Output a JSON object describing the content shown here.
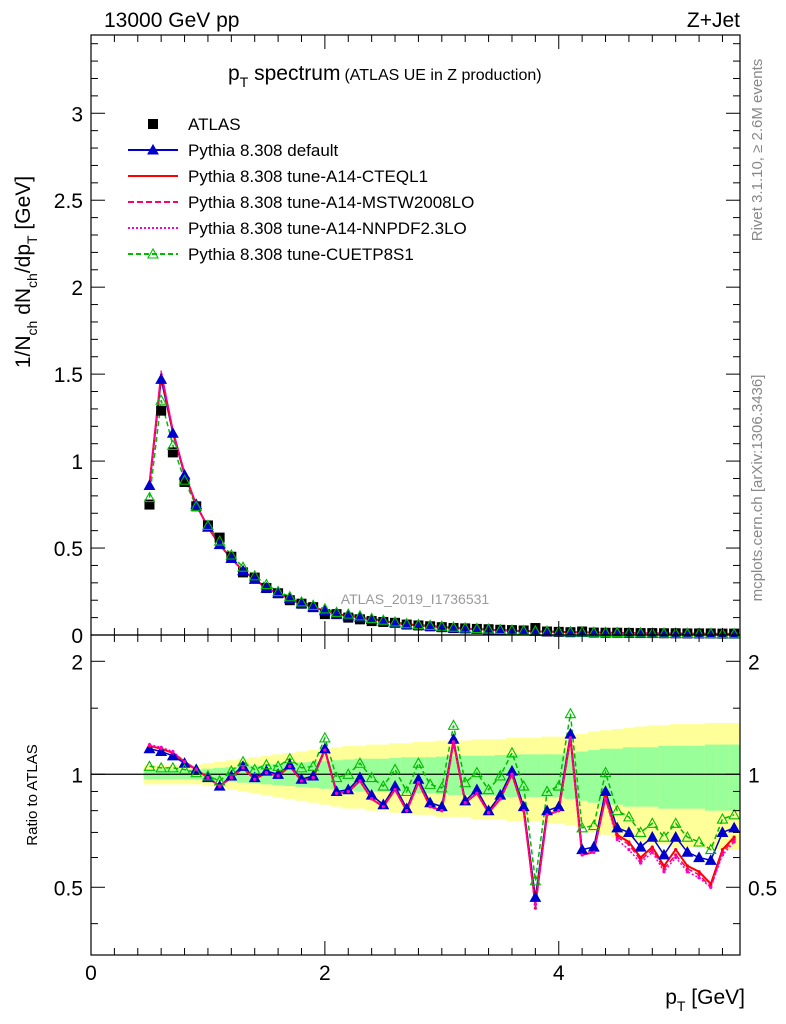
{
  "header": {
    "energy": "13000 GeV pp",
    "process": "Z+Jet",
    "title_main": "p",
    "title_sub": "T",
    "title_rest": " spectrum",
    "title_paren": "(ATLAS UE in Z production)",
    "watermark": "ATLAS_2019_I1736531",
    "side_rivet": "Rivet 3.1.10, ≥ 2.6M events",
    "side_mcplots": "mcplots.cern.ch [arXiv:1306.3436]"
  },
  "chart_data": [
    {
      "type": "scatter",
      "panel": "main",
      "ylabel": "1/N_ch dN_ch/dp_T [GeV]",
      "ylabel_parts": {
        "a": "1/N",
        "a_sub": "ch",
        "b": " dN",
        "b_sub": "ch",
        "c": "/dp",
        "c_sub": "T",
        "d": " [GeV]"
      },
      "xlim": [
        0,
        5.55
      ],
      "ylim": [
        0,
        3.45
      ],
      "y_ticks": [
        0,
        0.5,
        1,
        1.5,
        2,
        2.5,
        3
      ],
      "y_tick_labels": [
        "0",
        "0.5",
        "1",
        "1.5",
        "2",
        "2.5",
        "3"
      ],
      "legend_placement": "top-left",
      "x": [
        0.5,
        0.6,
        0.7,
        0.8,
        0.9,
        1.0,
        1.1,
        1.2,
        1.3,
        1.4,
        1.5,
        1.6,
        1.7,
        1.8,
        1.9,
        2.0,
        2.1,
        2.2,
        2.3,
        2.4,
        2.5,
        2.6,
        2.7,
        2.8,
        2.9,
        3.0,
        3.1,
        3.2,
        3.3,
        3.4,
        3.5,
        3.6,
        3.7,
        3.8,
        3.9,
        4.0,
        4.1,
        4.2,
        4.3,
        4.4,
        4.5,
        4.6,
        4.7,
        4.8,
        4.9,
        5.0,
        5.1,
        5.2,
        5.3,
        5.4,
        5.5
      ],
      "series": [
        {
          "name": "ATLAS",
          "color": "#000000",
          "marker": "square",
          "values": [
            0.75,
            1.29,
            1.05,
            0.88,
            0.74,
            0.63,
            0.56,
            0.45,
            0.36,
            0.33,
            0.27,
            0.24,
            0.2,
            0.18,
            0.16,
            0.12,
            0.12,
            0.1,
            0.09,
            0.08,
            0.075,
            0.07,
            0.06,
            0.055,
            0.05,
            0.045,
            0.04,
            0.038,
            0.035,
            0.033,
            0.03,
            0.028,
            0.026,
            0.04,
            0.02,
            0.018,
            0.016,
            0.02,
            0.014,
            0.013,
            0.013,
            0.012,
            0.011,
            0.011,
            0.01,
            0.01,
            0.009,
            0.009,
            0.009,
            0.008,
            0.008
          ]
        },
        {
          "name": "Pythia 8.308 default",
          "color": "#0000cc",
          "marker": "triangle",
          "dash": "",
          "values": [
            0.86,
            1.47,
            1.16,
            0.92,
            0.75,
            0.62,
            0.52,
            0.44,
            0.37,
            0.32,
            0.27,
            0.24,
            0.21,
            0.18,
            0.16,
            0.14,
            0.12,
            0.11,
            0.1,
            0.09,
            0.08,
            0.07,
            0.06,
            0.055,
            0.05,
            0.045,
            0.04,
            0.037,
            0.033,
            0.03,
            0.028,
            0.025,
            0.023,
            0.021,
            0.019,
            0.018,
            0.016,
            0.015,
            0.014,
            0.013,
            0.012,
            0.011,
            0.01,
            0.0095,
            0.009,
            0.0085,
            0.008,
            0.0075,
            0.007,
            0.0065,
            0.006
          ]
        },
        {
          "name": "Pythia 8.308 tune-A14-CTEQL1",
          "color": "#ff0000",
          "marker": "none",
          "dash": "",
          "values": [
            0.87,
            1.5,
            1.17,
            0.93,
            0.75,
            0.62,
            0.52,
            0.44,
            0.37,
            0.32,
            0.27,
            0.24,
            0.21,
            0.18,
            0.16,
            0.14,
            0.12,
            0.11,
            0.1,
            0.09,
            0.08,
            0.07,
            0.06,
            0.055,
            0.05,
            0.045,
            0.04,
            0.037,
            0.033,
            0.03,
            0.028,
            0.025,
            0.023,
            0.021,
            0.019,
            0.018,
            0.016,
            0.015,
            0.014,
            0.013,
            0.012,
            0.011,
            0.01,
            0.0095,
            0.009,
            0.0085,
            0.008,
            0.0075,
            0.007,
            0.0065,
            0.006
          ]
        },
        {
          "name": "Pythia 8.308 tune-A14-MSTW2008LO",
          "color": "#ff0066",
          "marker": "none",
          "dash": "6,3",
          "values": [
            0.87,
            1.51,
            1.17,
            0.93,
            0.75,
            0.62,
            0.52,
            0.44,
            0.37,
            0.32,
            0.27,
            0.24,
            0.21,
            0.18,
            0.16,
            0.14,
            0.12,
            0.11,
            0.1,
            0.09,
            0.08,
            0.07,
            0.06,
            0.055,
            0.05,
            0.045,
            0.04,
            0.037,
            0.033,
            0.03,
            0.028,
            0.025,
            0.023,
            0.021,
            0.019,
            0.018,
            0.016,
            0.015,
            0.014,
            0.013,
            0.012,
            0.011,
            0.01,
            0.0095,
            0.009,
            0.0085,
            0.008,
            0.0075,
            0.007,
            0.0065,
            0.006
          ]
        },
        {
          "name": "Pythia 8.308 tune-A14-NNPDF2.3LO",
          "color": "#ff00cc",
          "marker": "none",
          "dash": "2,2",
          "values": [
            0.87,
            1.52,
            1.18,
            0.93,
            0.75,
            0.62,
            0.52,
            0.44,
            0.37,
            0.32,
            0.27,
            0.24,
            0.21,
            0.18,
            0.16,
            0.14,
            0.12,
            0.11,
            0.1,
            0.09,
            0.08,
            0.07,
            0.06,
            0.055,
            0.05,
            0.045,
            0.04,
            0.037,
            0.033,
            0.03,
            0.028,
            0.025,
            0.023,
            0.021,
            0.019,
            0.018,
            0.016,
            0.015,
            0.014,
            0.013,
            0.012,
            0.011,
            0.01,
            0.0095,
            0.009,
            0.0085,
            0.008,
            0.0075,
            0.007,
            0.0065,
            0.006
          ]
        },
        {
          "name": "Pythia 8.308 tune-CUETP8S1",
          "color": "#00bb00",
          "marker": "open-triangle",
          "dash": "5,3",
          "values": [
            0.79,
            1.35,
            1.09,
            0.89,
            0.74,
            0.63,
            0.54,
            0.46,
            0.39,
            0.34,
            0.29,
            0.25,
            0.22,
            0.19,
            0.17,
            0.15,
            0.13,
            0.12,
            0.11,
            0.095,
            0.085,
            0.075,
            0.065,
            0.06,
            0.055,
            0.05,
            0.045,
            0.041,
            0.037,
            0.034,
            0.031,
            0.028,
            0.026,
            0.024,
            0.022,
            0.02,
            0.018,
            0.017,
            0.016,
            0.015,
            0.014,
            0.013,
            0.012,
            0.011,
            0.0105,
            0.01,
            0.0095,
            0.009,
            0.0085,
            0.008,
            0.0075
          ]
        }
      ]
    },
    {
      "type": "line",
      "panel": "ratio",
      "ylabel": "Ratio to ATLAS",
      "xlabel": "p_T [GeV]",
      "xlabel_parts": {
        "a": "p",
        "a_sub": "T",
        "b": " [GeV]"
      },
      "xlim": [
        0,
        5.55
      ],
      "ylim": [
        0.33,
        2.35
      ],
      "x_ticks": [
        0,
        2,
        4
      ],
      "x_tick_labels": [
        "0",
        "2",
        "4"
      ],
      "y_ticks": [
        0.5,
        1,
        2
      ],
      "y_tick_labels": [
        "0.5",
        "1",
        "2"
      ],
      "reference_line": 1,
      "x": [
        0.5,
        0.6,
        0.7,
        0.8,
        0.9,
        1.0,
        1.1,
        1.2,
        1.3,
        1.4,
        1.5,
        1.6,
        1.7,
        1.8,
        1.9,
        2.0,
        2.1,
        2.2,
        2.3,
        2.4,
        2.5,
        2.6,
        2.7,
        2.8,
        2.9,
        3.0,
        3.1,
        3.2,
        3.3,
        3.4,
        3.5,
        3.6,
        3.7,
        3.8,
        3.9,
        4.0,
        4.1,
        4.2,
        4.3,
        4.4,
        4.5,
        4.6,
        4.7,
        4.8,
        4.9,
        5.0,
        5.1,
        5.2,
        5.3,
        5.4,
        5.5
      ],
      "band_inner": [
        0.03,
        0.03,
        0.03,
        0.03,
        0.03,
        0.035,
        0.04,
        0.045,
        0.05,
        0.055,
        0.06,
        0.065,
        0.07,
        0.075,
        0.08,
        0.085,
        0.09,
        0.095,
        0.1,
        0.1,
        0.1,
        0.105,
        0.11,
        0.11,
        0.11,
        0.115,
        0.12,
        0.12,
        0.12,
        0.12,
        0.125,
        0.13,
        0.13,
        0.13,
        0.13,
        0.13,
        0.14,
        0.15,
        0.16,
        0.17,
        0.17,
        0.18,
        0.18,
        0.18,
        0.19,
        0.19,
        0.19,
        0.19,
        0.2,
        0.2,
        0.2
      ],
      "band_outer": [
        0.06,
        0.06,
        0.06,
        0.06,
        0.06,
        0.07,
        0.08,
        0.09,
        0.1,
        0.11,
        0.12,
        0.13,
        0.14,
        0.15,
        0.16,
        0.17,
        0.18,
        0.19,
        0.19,
        0.2,
        0.2,
        0.21,
        0.21,
        0.22,
        0.22,
        0.23,
        0.23,
        0.23,
        0.24,
        0.24,
        0.24,
        0.25,
        0.25,
        0.25,
        0.26,
        0.26,
        0.27,
        0.28,
        0.3,
        0.31,
        0.32,
        0.33,
        0.34,
        0.35,
        0.35,
        0.36,
        0.36,
        0.36,
        0.37,
        0.37,
        0.37
      ],
      "series": [
        {
          "name": "Pythia 8.308 default",
          "color": "#0000cc",
          "marker": "triangle",
          "dash": "",
          "values": [
            1.17,
            1.15,
            1.12,
            1.07,
            1.03,
            0.98,
            0.93,
            0.99,
            1.05,
            0.98,
            1.02,
            1.0,
            1.06,
            0.97,
            0.99,
            1.17,
            0.9,
            0.91,
            0.98,
            0.88,
            0.83,
            0.93,
            0.81,
            0.97,
            0.84,
            0.82,
            1.24,
            0.85,
            0.91,
            0.8,
            0.88,
            1.02,
            0.82,
            0.47,
            0.8,
            0.82,
            1.28,
            0.63,
            0.64,
            0.9,
            0.72,
            0.7,
            0.64,
            0.68,
            0.61,
            0.68,
            0.62,
            0.6,
            0.59,
            0.7,
            0.72
          ]
        },
        {
          "name": "Pythia 8.308 tune-A14-CTEQL1",
          "color": "#ff0000",
          "marker": "none",
          "dash": "",
          "values": [
            1.19,
            1.17,
            1.14,
            1.08,
            1.03,
            0.98,
            0.93,
            0.98,
            1.04,
            0.97,
            1.01,
            0.99,
            1.05,
            0.96,
            0.98,
            1.16,
            0.89,
            0.9,
            0.96,
            0.86,
            0.82,
            0.91,
            0.8,
            0.95,
            0.82,
            0.8,
            1.22,
            0.84,
            0.89,
            0.79,
            0.86,
            1.0,
            0.8,
            0.45,
            0.78,
            0.8,
            1.25,
            0.61,
            0.62,
            0.87,
            0.69,
            0.66,
            0.6,
            0.64,
            0.57,
            0.63,
            0.57,
            0.55,
            0.51,
            0.63,
            0.68
          ]
        },
        {
          "name": "Pythia 8.308 tune-A14-MSTW2008LO",
          "color": "#ff0066",
          "marker": "none",
          "dash": "6,3",
          "values": [
            1.19,
            1.17,
            1.14,
            1.08,
            1.03,
            0.98,
            0.93,
            0.98,
            1.04,
            0.97,
            1.01,
            0.99,
            1.05,
            0.96,
            0.98,
            1.16,
            0.89,
            0.9,
            0.96,
            0.86,
            0.82,
            0.91,
            0.8,
            0.95,
            0.82,
            0.8,
            1.22,
            0.84,
            0.89,
            0.79,
            0.86,
            1.0,
            0.8,
            0.44,
            0.78,
            0.8,
            1.25,
            0.61,
            0.62,
            0.86,
            0.68,
            0.65,
            0.59,
            0.63,
            0.56,
            0.61,
            0.56,
            0.54,
            0.5,
            0.62,
            0.67
          ]
        },
        {
          "name": "Pythia 8.308 tune-A14-NNPDF2.3LO",
          "color": "#ff00cc",
          "marker": "none",
          "dash": "2,2",
          "values": [
            1.2,
            1.18,
            1.15,
            1.08,
            1.03,
            0.98,
            0.93,
            0.98,
            1.04,
            0.97,
            1.01,
            0.99,
            1.05,
            0.96,
            0.98,
            1.16,
            0.89,
            0.9,
            0.96,
            0.86,
            0.82,
            0.91,
            0.8,
            0.95,
            0.82,
            0.8,
            1.22,
            0.84,
            0.89,
            0.79,
            0.86,
            1.0,
            0.8,
            0.45,
            0.78,
            0.8,
            1.25,
            0.61,
            0.62,
            0.86,
            0.67,
            0.63,
            0.58,
            0.62,
            0.55,
            0.6,
            0.55,
            0.53,
            0.5,
            0.61,
            0.66
          ]
        },
        {
          "name": "Pythia 8.308 tune-CUETP8S1",
          "color": "#00bb00",
          "marker": "open-triangle",
          "dash": "5,3",
          "values": [
            1.05,
            1.04,
            1.04,
            1.03,
            1.01,
            0.99,
            0.96,
            1.02,
            1.08,
            1.03,
            1.06,
            1.05,
            1.1,
            1.04,
            1.05,
            1.25,
            0.98,
            1.0,
            1.07,
            0.98,
            0.93,
            1.03,
            0.9,
            1.07,
            0.94,
            0.92,
            1.35,
            0.95,
            1.01,
            0.91,
            0.99,
            1.14,
            0.93,
            0.52,
            0.9,
            0.93,
            1.45,
            0.72,
            0.73,
            1.01,
            0.8,
            0.77,
            0.7,
            0.74,
            0.68,
            0.74,
            0.68,
            0.66,
            0.63,
            0.76,
            0.78
          ]
        }
      ]
    }
  ]
}
